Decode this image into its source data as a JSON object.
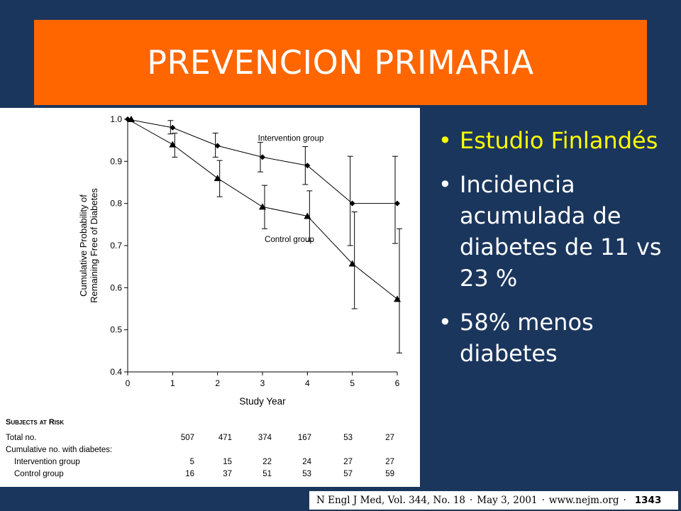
{
  "slide": {
    "title": "PREVENCION PRIMARIA",
    "colors": {
      "background": "#1b365d",
      "title_bar": "#ff6600",
      "highlight": "#ffff00",
      "text": "#ffffff"
    }
  },
  "bullets": [
    {
      "text": "Estudio Finlandés",
      "highlighted": true
    },
    {
      "text": "Incidencia acumulada de diabetes de 11 vs 23 %",
      "highlighted": false
    },
    {
      "text": "58% menos diabetes",
      "highlighted": false
    }
  ],
  "bullet_glyph": "•",
  "chart_data": {
    "type": "line",
    "title": "",
    "xlabel": "Study Year",
    "ylabel": "Cumulative Probability of Remaining Free of Diabetes",
    "x": [
      0,
      1,
      2,
      3,
      4,
      5,
      6
    ],
    "x_tick_labels": [
      "0",
      "1",
      "2",
      "3",
      "4",
      "5",
      "6"
    ],
    "y_tick_labels": [
      "1.0",
      "0.9",
      "0.8",
      "0.7",
      "0.6",
      "0.5",
      "0.4"
    ],
    "y_ticks": [
      1.0,
      0.9,
      0.8,
      0.7,
      0.6,
      0.5,
      0.4
    ],
    "xlim": [
      0,
      6
    ],
    "ylim": [
      0.4,
      1.0
    ],
    "grid": false,
    "series": [
      {
        "name": "Intervention group",
        "marker": "diamond",
        "values": [
          1.0,
          0.98,
          0.937,
          0.91,
          0.89,
          0.8,
          0.8
        ],
        "error_low": [
          null,
          0.965,
          0.91,
          0.875,
          0.845,
          0.7,
          0.705
        ],
        "error_high": [
          null,
          0.997,
          0.967,
          0.945,
          0.935,
          0.912,
          0.912
        ]
      },
      {
        "name": "Control group",
        "marker": "triangle",
        "values": [
          1.0,
          0.94,
          0.86,
          0.792,
          0.77,
          0.657,
          0.573
        ],
        "error_low": [
          null,
          0.91,
          0.816,
          0.74,
          0.71,
          0.55,
          0.445
        ],
        "error_high": [
          null,
          0.967,
          0.902,
          0.843,
          0.83,
          0.78,
          0.74
        ]
      }
    ],
    "subjects_table": {
      "title": "Subjects at Risk",
      "rows": [
        {
          "label": "Total no.",
          "indent": false,
          "values": [
            "507",
            "471",
            "374",
            "167",
            "53",
            "27"
          ]
        },
        {
          "label": "Cumulative no. with diabetes:",
          "indent": false,
          "values": []
        },
        {
          "label": "Intervention group",
          "indent": true,
          "values": [
            "5",
            "15",
            "22",
            "24",
            "27",
            "27"
          ]
        },
        {
          "label": "Control group",
          "indent": true,
          "values": [
            "16",
            "37",
            "51",
            "53",
            "57",
            "59"
          ]
        }
      ]
    }
  },
  "citation": {
    "journal": "N Engl J Med, Vol. 344, No. 18",
    "date": "May 3, 2001",
    "url": "www.nejm.org",
    "separator": "·",
    "page": "1343"
  }
}
